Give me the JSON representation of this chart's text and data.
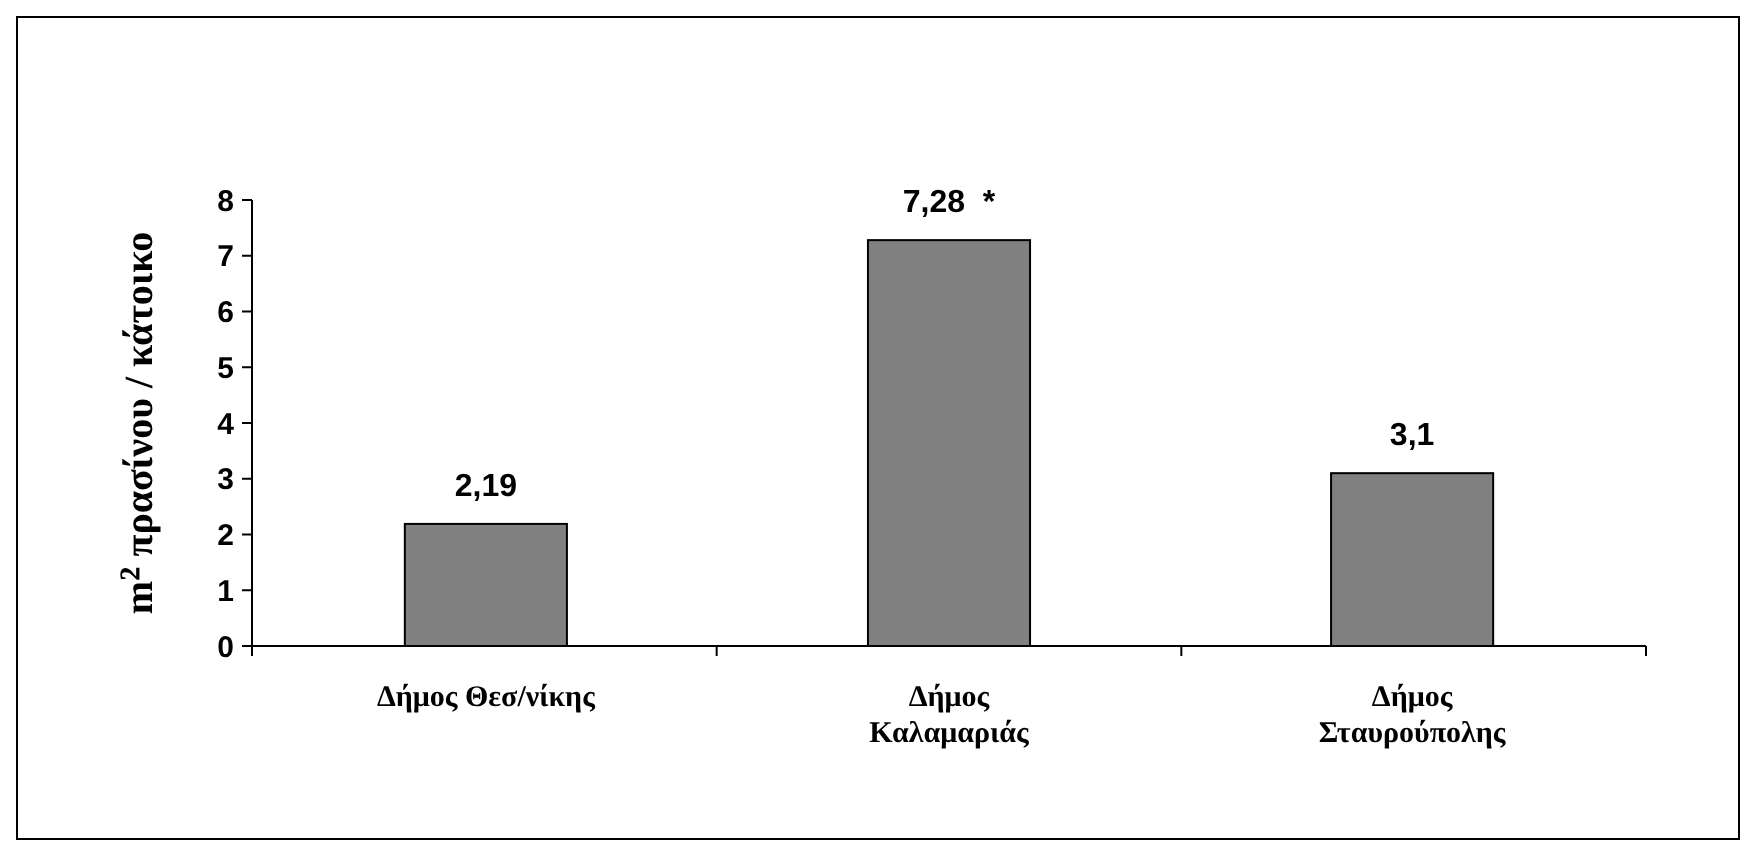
{
  "chart_data": {
    "type": "bar",
    "ylabel": "m² πρασίνου / κάτοικο",
    "categories": [
      "Δήμος Θεσ/νίκης",
      "Δήμος Καλαμαριάς",
      "Δήμος Σταυρούπολης"
    ],
    "values": [
      2.19,
      7.28,
      3.1
    ],
    "color": "#808080",
    "value_labels": [
      "2,19",
      "7,28  *",
      "3,1"
    ],
    "ylim": [
      0,
      8
    ],
    "yticks": [
      0,
      1,
      2,
      3,
      4,
      5,
      6,
      7,
      8
    ],
    "grid": false
  }
}
